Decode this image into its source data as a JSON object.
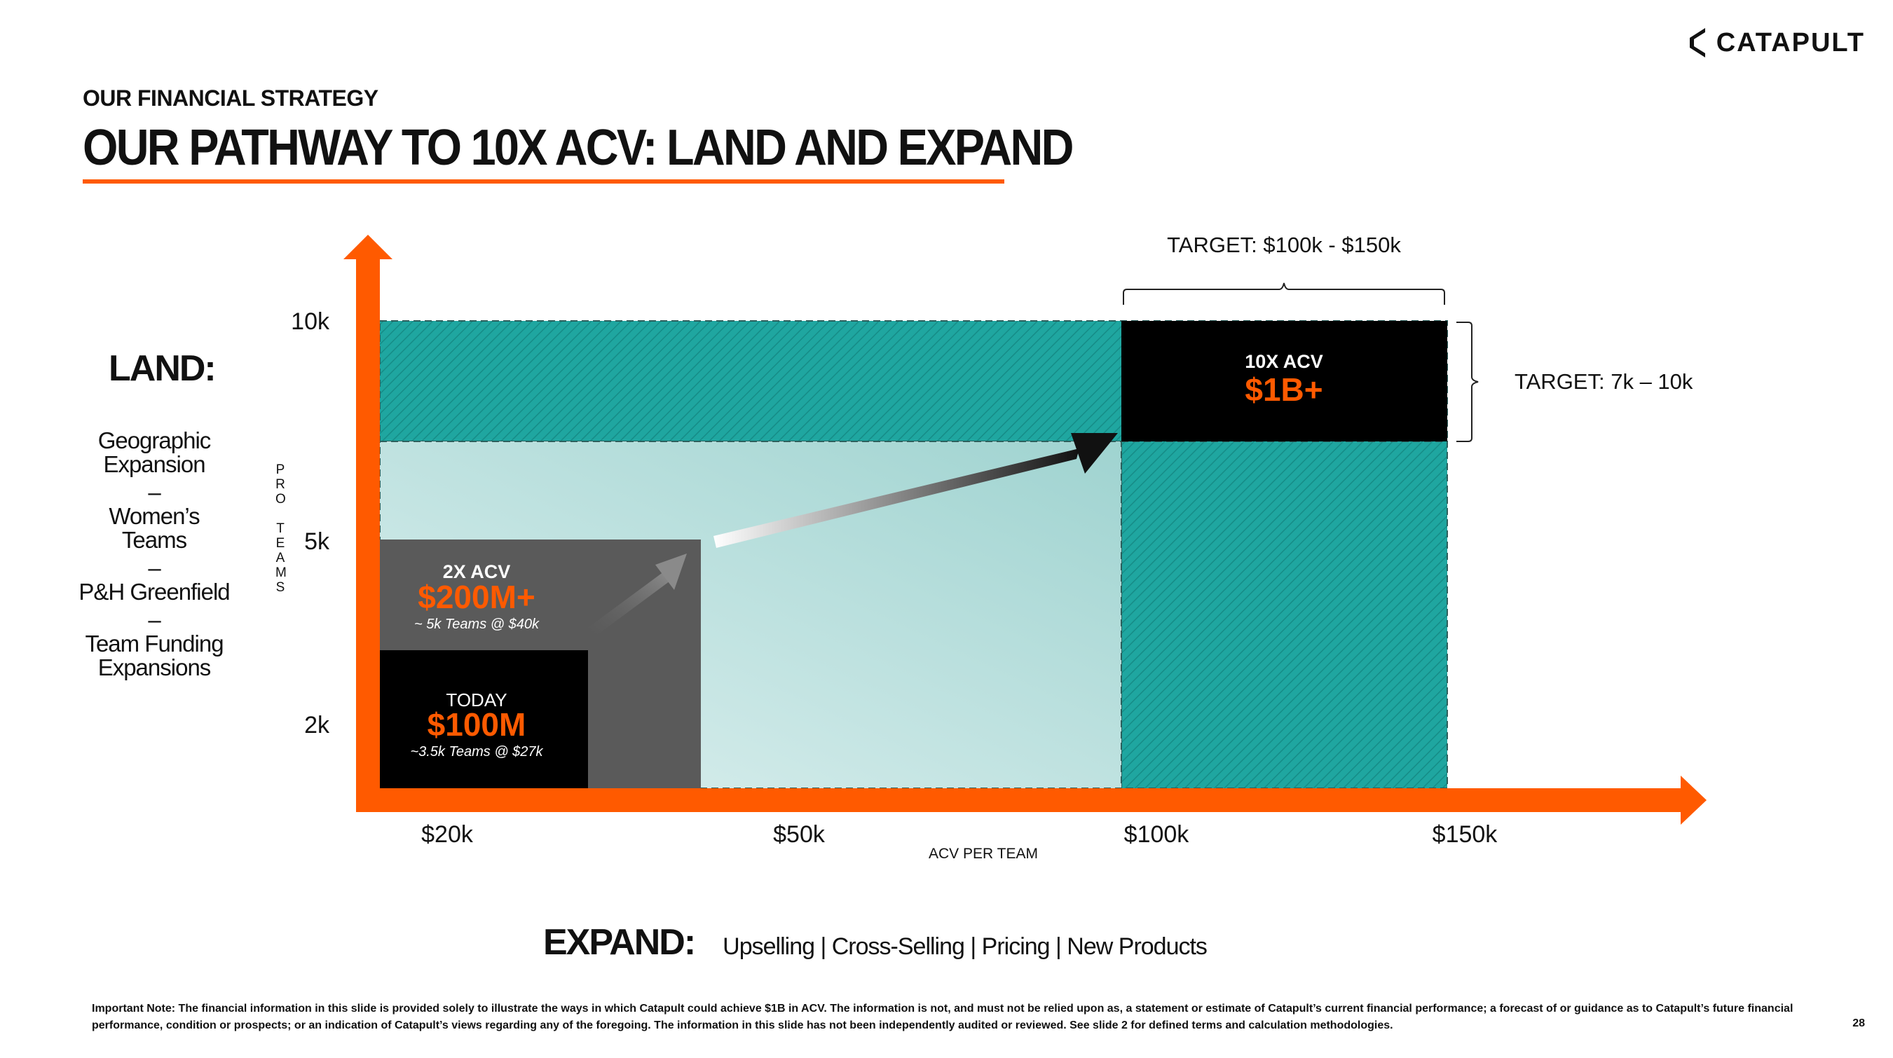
{
  "header": {
    "logo_text": "CATAPULT",
    "kicker": "OUR FINANCIAL STRATEGY",
    "title": "OUR PATHWAY TO 10X ACV: LAND AND EXPAND"
  },
  "land": {
    "heading": "LAND:",
    "items": [
      "Geographic Expansion",
      "Women’s Teams",
      "P&H Greenfield",
      "Team Funding Expansions"
    ],
    "separator": "–"
  },
  "expand": {
    "heading": "EXPAND:",
    "items_text": "Upselling | Cross-Selling | Pricing | New Products"
  },
  "chart_data": {
    "type": "area",
    "title": "OUR PATHWAY TO 10X ACV: LAND AND EXPAND",
    "xlabel": "ACV PER TEAM",
    "ylabel": "PRO TEAMS",
    "x_ticks": [
      "$20k",
      "$50k",
      "$100k",
      "$150k"
    ],
    "y_ticks": [
      "10k",
      "5k",
      "2k"
    ],
    "boxes": [
      {
        "name": "today",
        "label": "TODAY",
        "value_label": "$100M",
        "detail": "~3.5k Teams @ $27k",
        "acv_k": 27,
        "teams_k": 3.5
      },
      {
        "name": "2x",
        "label": "2X ACV",
        "value_label": "$200M+",
        "detail": "~ 5k Teams @ $40k",
        "acv_k": 40,
        "teams_k": 5
      },
      {
        "name": "10x",
        "label": "10X ACV",
        "value_label": "$1B+",
        "acv_k_range": [
          100,
          150
        ],
        "teams_k_range": [
          7,
          10
        ]
      }
    ],
    "targets": {
      "acv": "TARGET: $100k - $150k",
      "teams": "TARGET: 7k – 10k"
    },
    "colors": {
      "accent": "#ff5a00",
      "teal": "#1fa6a0",
      "light_teal": "#bfe4e2",
      "dark_box": "#000000",
      "gray_box": "#5a5a5a"
    }
  },
  "footer": {
    "note": "Important Note: The financial information in this slide is provided solely to illustrate the ways in which Catapult could achieve $1B in ACV. The information is not, and must not be relied upon as, a statement or estimate of Catapult’s current financial performance; a forecast of or guidance as to Catapult’s future financial performance, condition or prospects; or an indication of Catapult’s views regarding any of the foregoing. The information in this slide has not been independently audited or reviewed. See slide 2 for defined terms and calculation methodologies.",
    "page_number": "28"
  }
}
